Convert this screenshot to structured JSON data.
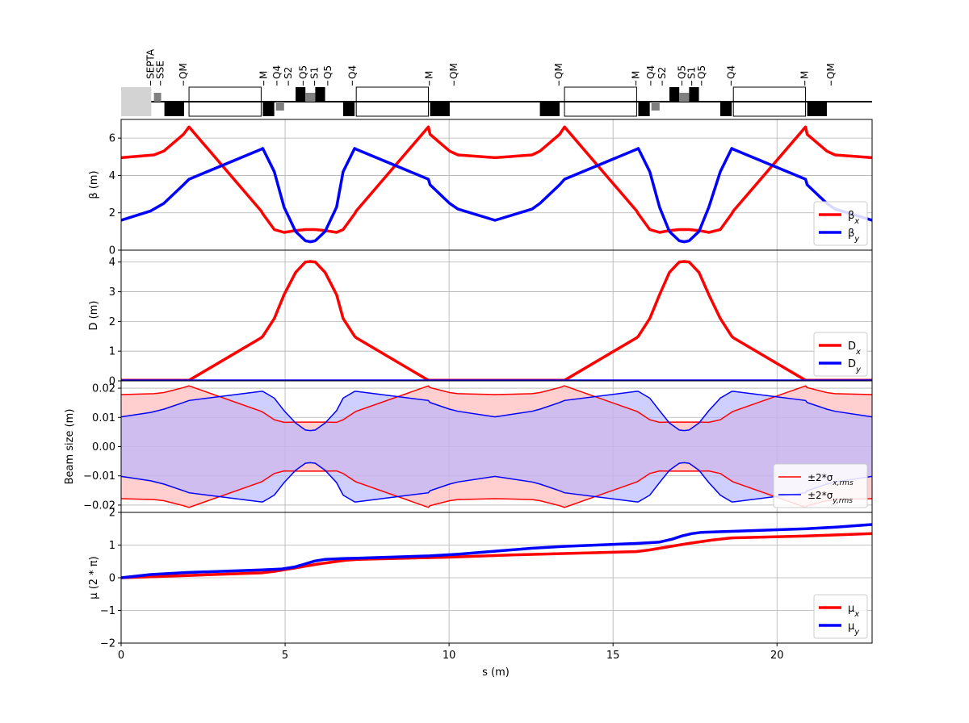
{
  "xaxis": {
    "label": "s (m)",
    "range": [
      0,
      22.9
    ],
    "ticks": [
      0,
      5,
      10,
      15,
      20
    ],
    "tick_labels": [
      "0",
      "5",
      "10",
      "15",
      "20"
    ]
  },
  "lattice": {
    "labels": [
      {
        "s": 0.9,
        "text": "SEPTA"
      },
      {
        "s": 1.2,
        "text": "SSE"
      },
      {
        "s": 1.9,
        "text": "QM"
      },
      {
        "s": 4.35,
        "text": "M"
      },
      {
        "s": 4.75,
        "text": "Q4"
      },
      {
        "s": 5.1,
        "text": "S2"
      },
      {
        "s": 5.55,
        "text": "Q5"
      },
      {
        "s": 5.9,
        "text": "S1"
      },
      {
        "s": 6.3,
        "text": "Q5"
      },
      {
        "s": 7.05,
        "text": "Q4"
      },
      {
        "s": 9.4,
        "text": "M"
      },
      {
        "s": 10.15,
        "text": "QM"
      },
      {
        "s": 13.35,
        "text": "QM"
      },
      {
        "s": 15.7,
        "text": "M"
      },
      {
        "s": 16.15,
        "text": "Q4"
      },
      {
        "s": 16.5,
        "text": "S2"
      },
      {
        "s": 17.1,
        "text": "Q5"
      },
      {
        "s": 17.4,
        "text": "S1"
      },
      {
        "s": 17.7,
        "text": "Q5"
      },
      {
        "s": 18.6,
        "text": "Q4"
      },
      {
        "s": 20.85,
        "text": "M"
      },
      {
        "s": 21.65,
        "text": "QM"
      }
    ],
    "elements": [
      {
        "type": "septum",
        "s0": 0.0,
        "s1": 0.92
      },
      {
        "type": "sext",
        "s0": 1.0,
        "s1": 1.22
      },
      {
        "type": "quad",
        "s0": 1.32,
        "s1": 1.92
      },
      {
        "type": "dipole",
        "s0": 2.07,
        "s1": 4.27
      },
      {
        "type": "quad",
        "s0": 4.32,
        "s1": 4.67
      },
      {
        "type": "sext",
        "s0": 4.72,
        "s1": 4.97
      },
      {
        "type": "quad",
        "s0": 5.32,
        "s1": 5.62
      },
      {
        "type": "sext",
        "s0": 5.62,
        "s1": 5.92
      },
      {
        "type": "quad",
        "s0": 5.92,
        "s1": 6.22
      },
      {
        "type": "quad",
        "s0": 6.77,
        "s1": 7.12
      },
      {
        "type": "dipole",
        "s0": 7.17,
        "s1": 9.37
      },
      {
        "type": "quad",
        "s0": 9.42,
        "s1": 10.02
      },
      {
        "type": "quad",
        "s0": 12.77,
        "s1": 13.37
      },
      {
        "type": "dipole",
        "s0": 13.52,
        "s1": 15.72
      },
      {
        "type": "quad",
        "s0": 15.77,
        "s1": 16.12
      },
      {
        "type": "sext",
        "s0": 16.17,
        "s1": 16.42
      },
      {
        "type": "quad",
        "s0": 16.72,
        "s1": 17.02
      },
      {
        "type": "sext",
        "s0": 17.02,
        "s1": 17.32
      },
      {
        "type": "quad",
        "s0": 17.32,
        "s1": 17.62
      },
      {
        "type": "quad",
        "s0": 18.27,
        "s1": 18.62
      },
      {
        "type": "dipole",
        "s0": 18.67,
        "s1": 20.87
      },
      {
        "type": "quad",
        "s0": 20.92,
        "s1": 21.52
      }
    ]
  },
  "chart_data": [
    {
      "type": "line",
      "ylabel": "β (m)",
      "ylim": [
        0,
        7
      ],
      "yticks": [
        0,
        2,
        4,
        6
      ],
      "ytick_labels": [
        "0",
        "2",
        "4",
        "6"
      ],
      "grid": true,
      "legend_position": "bottom-right",
      "series": [
        {
          "name": "β_x",
          "color": "#ff0000",
          "x": [
            0,
            1,
            1.3,
            1.9,
            2.07,
            4.27,
            4.32,
            4.67,
            4.97,
            5.32,
            5.62,
            5.77,
            5.92,
            6.22,
            6.57,
            6.77,
            7.12,
            7.17,
            9.37,
            9.42,
            10.02,
            10.27,
            11.4,
            12.53,
            12.77,
            13.37,
            13.52,
            15.72,
            15.77,
            16.12,
            16.42,
            16.72,
            17.02,
            17.17,
            17.32,
            17.62,
            17.92,
            18.27,
            18.62,
            18.67,
            20.87,
            20.92,
            21.52,
            21.77,
            22.9
          ],
          "y": [
            4.95,
            5.1,
            5.3,
            6.2,
            6.6,
            2.1,
            1.95,
            1.1,
            0.95,
            1.05,
            1.1,
            1.1,
            1.1,
            1.05,
            0.95,
            1.1,
            1.95,
            2.1,
            6.6,
            6.2,
            5.3,
            5.1,
            4.95,
            5.1,
            5.3,
            6.2,
            6.6,
            2.1,
            1.95,
            1.1,
            0.95,
            1.05,
            1.1,
            1.1,
            1.1,
            1.05,
            0.95,
            1.1,
            1.95,
            2.1,
            6.6,
            6.2,
            5.3,
            5.1,
            4.95
          ]
        },
        {
          "name": "β_y",
          "color": "#0000ff",
          "x": [
            0,
            0.9,
            1.3,
            1.9,
            2.07,
            4.27,
            4.32,
            4.67,
            4.97,
            5.32,
            5.62,
            5.77,
            5.92,
            6.22,
            6.57,
            6.77,
            7.12,
            7.17,
            9.37,
            9.42,
            10.02,
            10.27,
            11.4,
            12.53,
            12.77,
            13.37,
            13.52,
            15.72,
            15.77,
            16.12,
            16.42,
            16.72,
            17.02,
            17.17,
            17.32,
            17.62,
            17.92,
            18.27,
            18.62,
            18.67,
            20.87,
            20.92,
            21.52,
            21.77,
            22.9
          ],
          "y": [
            1.6,
            2.1,
            2.5,
            3.5,
            3.8,
            5.4,
            5.45,
            4.2,
            2.3,
            1.0,
            0.5,
            0.45,
            0.5,
            1.0,
            2.3,
            4.2,
            5.45,
            5.4,
            3.8,
            3.5,
            2.5,
            2.2,
            1.6,
            2.2,
            2.5,
            3.5,
            3.8,
            5.4,
            5.45,
            4.2,
            2.3,
            1.0,
            0.5,
            0.45,
            0.5,
            1.0,
            2.3,
            4.2,
            5.45,
            5.4,
            3.8,
            3.5,
            2.5,
            2.2,
            1.6
          ]
        }
      ]
    },
    {
      "type": "line",
      "ylabel": "D (m)",
      "ylim": [
        0,
        4.4
      ],
      "yticks": [
        0,
        1,
        2,
        3,
        4
      ],
      "ytick_labels": [
        "0",
        "1",
        "2",
        "3",
        "4"
      ],
      "grid": true,
      "legend_position": "bottom-right",
      "series": [
        {
          "name": "D_x",
          "color": "#ff0000",
          "x": [
            0,
            2.07,
            4.27,
            4.32,
            4.67,
            4.97,
            5.32,
            5.62,
            5.77,
            5.92,
            6.22,
            6.57,
            6.77,
            7.12,
            7.17,
            9.37,
            13.52,
            15.72,
            15.77,
            16.12,
            16.42,
            16.72,
            17.02,
            17.17,
            17.32,
            17.62,
            17.92,
            18.27,
            18.62,
            18.67,
            20.87,
            22.9
          ],
          "y": [
            0.02,
            0.02,
            1.45,
            1.5,
            2.1,
            2.9,
            3.65,
            4.0,
            4.02,
            4.0,
            3.65,
            2.9,
            2.1,
            1.5,
            1.45,
            0.02,
            0.02,
            1.45,
            1.5,
            2.1,
            2.9,
            3.65,
            4.0,
            4.02,
            4.0,
            3.65,
            2.9,
            2.1,
            1.5,
            1.45,
            0.02,
            0.02
          ]
        },
        {
          "name": "D_y",
          "color": "#0000ff",
          "x": [
            0,
            22.9
          ],
          "y": [
            0,
            0
          ]
        }
      ]
    },
    {
      "type": "area",
      "ylabel": "Beam size (m)",
      "ylim": [
        -0.0225,
        0.0225
      ],
      "yticks": [
        -0.02,
        -0.01,
        0.0,
        0.01,
        0.02
      ],
      "ytick_labels": [
        "−0.02",
        "−0.01",
        "0.00",
        "0.01",
        "0.02"
      ],
      "grid": true,
      "legend_position": "bottom-right",
      "series": [
        {
          "name": "±2*σ_{x,rms}",
          "color": "#ff0000",
          "fill": "#ffb3b3",
          "x": [
            0,
            1,
            1.3,
            1.9,
            2.07,
            4.27,
            4.32,
            4.67,
            4.97,
            5.32,
            5.62,
            5.77,
            5.92,
            6.22,
            6.57,
            6.77,
            7.12,
            7.17,
            9.37,
            9.42,
            10.02,
            10.27,
            11.4,
            12.53,
            12.77,
            13.37,
            13.52,
            15.72,
            15.77,
            16.12,
            16.42,
            16.72,
            17.02,
            17.17,
            17.32,
            17.62,
            17.92,
            18.27,
            18.62,
            18.67,
            20.87,
            20.92,
            21.52,
            21.77,
            22.9
          ],
          "y": [
            0.0178,
            0.0181,
            0.0185,
            0.0202,
            0.0208,
            0.0121,
            0.0118,
            0.0092,
            0.0083,
            0.0084,
            0.0084,
            0.0084,
            0.0084,
            0.0084,
            0.0083,
            0.0092,
            0.0118,
            0.0121,
            0.0208,
            0.0202,
            0.0185,
            0.0181,
            0.0178,
            0.0181,
            0.0185,
            0.0202,
            0.0208,
            0.0121,
            0.0118,
            0.0092,
            0.0083,
            0.0084,
            0.0084,
            0.0084,
            0.0084,
            0.0084,
            0.0083,
            0.0092,
            0.0118,
            0.0121,
            0.0208,
            0.0202,
            0.0185,
            0.0181,
            0.0178
          ]
        },
        {
          "name": "±2*σ_{y,rms}",
          "color": "#0000ff",
          "fill": "#b3b3ff",
          "x": [
            0,
            0.9,
            1.3,
            1.9,
            2.07,
            4.27,
            4.32,
            4.67,
            4.97,
            5.32,
            5.62,
            5.77,
            5.92,
            6.22,
            6.57,
            6.77,
            7.12,
            7.17,
            9.37,
            9.42,
            10.02,
            10.27,
            11.4,
            12.53,
            12.77,
            13.37,
            13.52,
            15.72,
            15.77,
            16.12,
            16.42,
            16.72,
            17.02,
            17.17,
            17.32,
            17.62,
            17.92,
            18.27,
            18.62,
            18.67,
            20.87,
            20.92,
            21.52,
            21.77,
            22.9
          ],
          "y": [
            0.0102,
            0.0117,
            0.0128,
            0.0151,
            0.0158,
            0.0189,
            0.0189,
            0.0166,
            0.0123,
            0.0081,
            0.0057,
            0.0055,
            0.0057,
            0.0081,
            0.0123,
            0.0166,
            0.0189,
            0.0189,
            0.0158,
            0.0151,
            0.0128,
            0.0121,
            0.0102,
            0.0121,
            0.0128,
            0.0151,
            0.0158,
            0.0189,
            0.0189,
            0.0166,
            0.0123,
            0.0081,
            0.0057,
            0.0055,
            0.0057,
            0.0081,
            0.0123,
            0.0166,
            0.0189,
            0.0189,
            0.0158,
            0.0151,
            0.0128,
            0.0121,
            0.0102
          ]
        }
      ]
    },
    {
      "type": "line",
      "ylabel": "μ (2 * π)",
      "ylim": [
        -2,
        2
      ],
      "yticks": [
        -2,
        -1,
        0,
        1,
        2
      ],
      "ytick_labels": [
        "−2",
        "−1",
        "0",
        "1",
        "2"
      ],
      "grid": true,
      "legend_position": "bottom-right",
      "series": [
        {
          "name": "μ_x",
          "color": "#ff0000",
          "x": [
            0,
            2,
            4.3,
            4.7,
            5.3,
            6,
            6.8,
            7.2,
            10,
            12,
            15.7,
            16.1,
            16.7,
            17.3,
            18,
            18.6,
            20.9,
            22.9
          ],
          "y": [
            0,
            0.07,
            0.15,
            0.2,
            0.3,
            0.42,
            0.53,
            0.56,
            0.63,
            0.7,
            0.8,
            0.85,
            0.95,
            1.05,
            1.15,
            1.22,
            1.28,
            1.35
          ]
        },
        {
          "name": "μ_y",
          "color": "#0000ff",
          "x": [
            0,
            0.9,
            2,
            4.3,
            4.9,
            5.3,
            5.6,
            5.9,
            6.2,
            6.8,
            7.2,
            9.4,
            10.3,
            11.5,
            12.5,
            13.5,
            15.7,
            16.4,
            16.8,
            17.1,
            17.4,
            17.7,
            18.6,
            20.9,
            21.8,
            22.9
          ],
          "y": [
            0,
            0.1,
            0.16,
            0.24,
            0.27,
            0.33,
            0.42,
            0.51,
            0.56,
            0.59,
            0.6,
            0.67,
            0.72,
            0.82,
            0.9,
            0.96,
            1.05,
            1.09,
            1.18,
            1.28,
            1.35,
            1.39,
            1.42,
            1.5,
            1.55,
            1.63
          ]
        }
      ]
    }
  ]
}
